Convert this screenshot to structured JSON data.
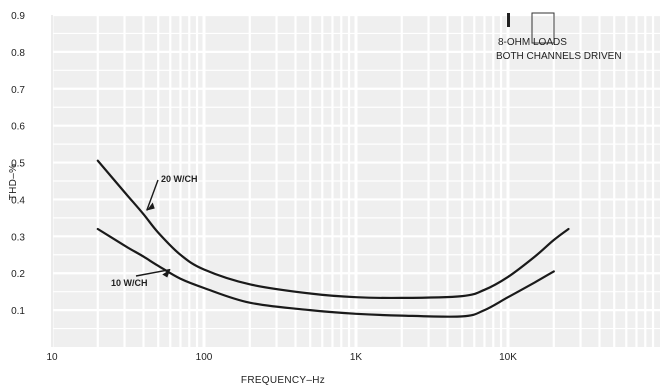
{
  "chart_data": {
    "type": "line",
    "title": "",
    "xlabel": "FREQUENCY–Hz",
    "ylabel": "THD–%",
    "xscale": "log",
    "xlim": [
      10,
      100000
    ],
    "ylim": [
      0,
      0.9
    ],
    "grid": true,
    "x_ticks": [
      {
        "value": 10,
        "label": "10"
      },
      {
        "value": 100,
        "label": "100"
      },
      {
        "value": 1000,
        "label": "1K"
      },
      {
        "value": 10000,
        "label": "10K"
      }
    ],
    "y_ticks": [
      {
        "value": 0.1,
        "label": "0.1"
      },
      {
        "value": 0.2,
        "label": "0.2"
      },
      {
        "value": 0.3,
        "label": "0.3"
      },
      {
        "value": 0.4,
        "label": "0.4"
      },
      {
        "value": 0.5,
        "label": "0.5"
      },
      {
        "value": 0.6,
        "label": "0.6"
      },
      {
        "value": 0.7,
        "label": "0.7"
      },
      {
        "value": 0.8,
        "label": "0.8"
      },
      {
        "value": 0.9,
        "label": "0.9"
      }
    ],
    "annotations": [
      "8-OHM LOADS",
      "BOTH CHANNELS DRIVEN"
    ],
    "series": [
      {
        "name": "20 W/CH",
        "color": "#1a1a1a",
        "x": [
          20,
          30,
          40,
          50,
          70,
          100,
          200,
          500,
          1000,
          2000,
          5000,
          7000,
          10000,
          15000,
          20000,
          25000
        ],
        "y": [
          0.505,
          0.42,
          0.36,
          0.31,
          0.25,
          0.21,
          0.17,
          0.145,
          0.135,
          0.133,
          0.138,
          0.155,
          0.19,
          0.245,
          0.29,
          0.32
        ]
      },
      {
        "name": "10 W/CH",
        "color": "#1a1a1a",
        "x": [
          20,
          30,
          40,
          50,
          70,
          100,
          200,
          500,
          1000,
          2000,
          5000,
          7000,
          10000,
          15000,
          20000
        ],
        "y": [
          0.32,
          0.275,
          0.245,
          0.22,
          0.185,
          0.16,
          0.12,
          0.1,
          0.09,
          0.085,
          0.083,
          0.1,
          0.135,
          0.175,
          0.205
        ]
      }
    ]
  }
}
